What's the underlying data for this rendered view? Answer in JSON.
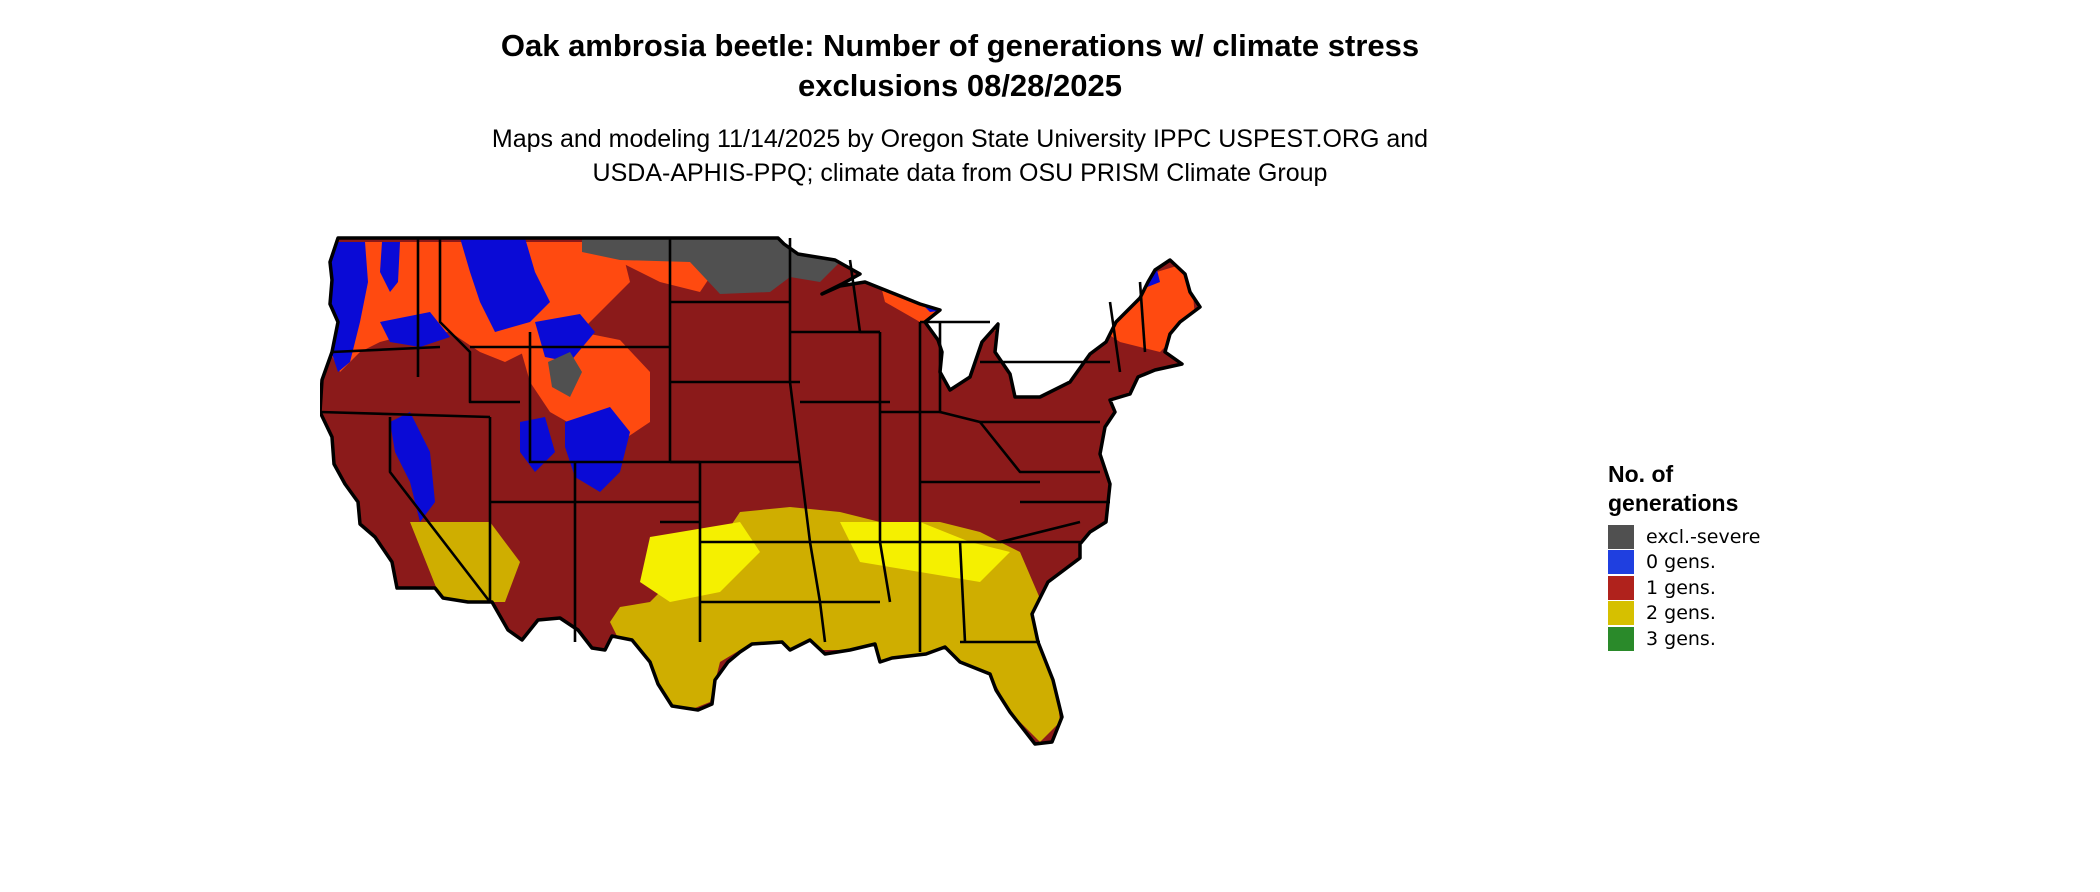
{
  "map": {
    "title_line1": "Oak ambrosia beetle: Number of generations w/ climate stress",
    "title_line2": "exclusions 08/28/2025",
    "subtitle_line1": "Maps and modeling 11/14/2025 by Oregon State University IPPC USPEST.ORG and",
    "subtitle_line2": "USDA-APHIS-PPQ; climate data from OSU PRISM Climate Group",
    "region": "Conterminous United States",
    "legend": {
      "title_line1": "No. of",
      "title_line2": "generations",
      "items": [
        {
          "label": "excl.-severe",
          "color": "#505050"
        },
        {
          "label": "0 gens.",
          "color": "#1f3fe0"
        },
        {
          "label": "1 gens.",
          "color": "#b0221c"
        },
        {
          "label": "2 gens.",
          "color": "#d6c000"
        },
        {
          "label": "3 gens.",
          "color": "#2a8a2a"
        }
      ]
    },
    "colors": {
      "excl_severe": "#505050",
      "zero_gens": "#0a0ad6",
      "one_gens": "#8b1a1a",
      "one_gens_light": "#ff4a10",
      "two_gens": "#cfae00",
      "two_gens_light": "#f5f000",
      "border": "#000000"
    }
  }
}
